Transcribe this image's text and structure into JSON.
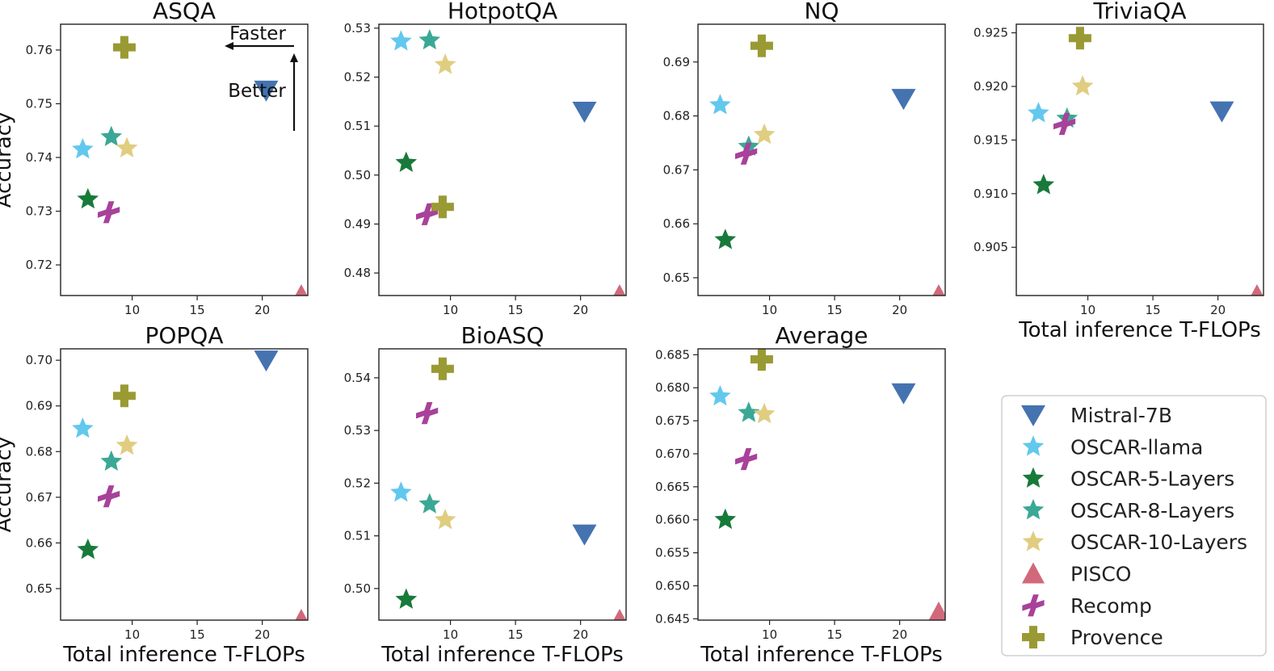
{
  "chart_data": {
    "type": "scatter",
    "xlabel": "Total inference T-FLOPs",
    "ylabel": "Accuracy",
    "annotations": {
      "horizontal": "Faster",
      "vertical": "Better"
    },
    "series": [
      {
        "name": "Mistral-7B",
        "color": "#4473b0",
        "marker": "triangle-down"
      },
      {
        "name": "OSCAR-llama",
        "color": "#62c8ee",
        "marker": "star"
      },
      {
        "name": "OSCAR-5-Layers",
        "color": "#187a3a",
        "marker": "star"
      },
      {
        "name": "OSCAR-8-Layers",
        "color": "#3ba895",
        "marker": "star"
      },
      {
        "name": "OSCAR-10-Layers",
        "color": "#e0cd80",
        "marker": "star"
      },
      {
        "name": "PISCO",
        "color": "#d1697a",
        "marker": "triangle-up"
      },
      {
        "name": "Recomp",
        "color": "#a8419a",
        "marker": "x"
      },
      {
        "name": "Provence",
        "color": "#9a9a34",
        "marker": "plus"
      }
    ],
    "x": {
      "Mistral-7B": 20.3,
      "OSCAR-llama": 6.2,
      "OSCAR-5-Layers": 6.6,
      "OSCAR-8-Layers": 8.4,
      "OSCAR-10-Layers": 9.6,
      "PISCO": 23.0,
      "Recomp": 8.2,
      "Provence": 9.4
    },
    "xlim": [
      4.5,
      23.5
    ],
    "xticks": [
      10,
      15,
      20
    ],
    "panels": [
      {
        "title": "ASQA",
        "ylim": [
          0.7143,
          0.7648
        ],
        "yticks": [
          0.72,
          0.73,
          0.74,
          0.75,
          0.76
        ],
        "ytick_labels": [
          "0.72",
          "0.73",
          "0.74",
          "0.75",
          "0.76"
        ],
        "values": {
          "Mistral-7B": 0.7525,
          "OSCAR-llama": 0.7415,
          "OSCAR-5-Layers": 0.7322,
          "OSCAR-8-Layers": 0.7438,
          "OSCAR-10-Layers": 0.7417,
          "PISCO": 0.7143,
          "Recomp": 0.7298,
          "Provence": 0.7605
        },
        "show_ylabel": true,
        "show_xlabel": false,
        "show_arrows": true
      },
      {
        "title": "HotpotQA",
        "ylim": [
          0.4754,
          0.5308
        ],
        "yticks": [
          0.48,
          0.49,
          0.5,
          0.51,
          0.52,
          0.53
        ],
        "ytick_labels": [
          "0.48",
          "0.49",
          "0.50",
          "0.51",
          "0.52",
          "0.53"
        ],
        "values": {
          "Mistral-7B": 0.513,
          "OSCAR-llama": 0.5273,
          "OSCAR-5-Layers": 0.5025,
          "OSCAR-8-Layers": 0.5275,
          "OSCAR-10-Layers": 0.5225,
          "PISCO": 0.4754,
          "Recomp": 0.492,
          "Provence": 0.4935
        },
        "show_ylabel": false,
        "show_xlabel": false,
        "show_arrows": false
      },
      {
        "title": "NQ",
        "ylim": [
          0.6467,
          0.697
        ],
        "yticks": [
          0.65,
          0.66,
          0.67,
          0.68,
          0.69
        ],
        "ytick_labels": [
          "0.65",
          "0.66",
          "0.67",
          "0.68",
          "0.69"
        ],
        "values": {
          "Mistral-7B": 0.6832,
          "OSCAR-llama": 0.682,
          "OSCAR-5-Layers": 0.657,
          "OSCAR-8-Layers": 0.6743,
          "OSCAR-10-Layers": 0.6765,
          "PISCO": 0.6467,
          "Recomp": 0.673,
          "Provence": 0.693
        },
        "show_ylabel": false,
        "show_xlabel": false,
        "show_arrows": false
      },
      {
        "title": "TriviaQA",
        "ylim": [
          0.9005,
          0.9258
        ],
        "yticks": [
          0.905,
          0.91,
          0.915,
          0.92,
          0.925
        ],
        "ytick_labels": [
          "0.905",
          "0.910",
          "0.915",
          "0.920",
          "0.925"
        ],
        "values": {
          "Mistral-7B": 0.9177,
          "OSCAR-llama": 0.9175,
          "OSCAR-5-Layers": 0.9108,
          "OSCAR-8-Layers": 0.917,
          "OSCAR-10-Layers": 0.92,
          "PISCO": 0.9005,
          "Recomp": 0.9165,
          "Provence": 0.9245
        },
        "show_ylabel": false,
        "show_xlabel": true,
        "show_arrows": false
      },
      {
        "title": "POPQA",
        "ylim": [
          0.6431,
          0.7025
        ],
        "yticks": [
          0.65,
          0.66,
          0.67,
          0.68,
          0.69,
          0.7
        ],
        "ytick_labels": [
          "0.65",
          "0.66",
          "0.67",
          "0.68",
          "0.69",
          "0.70"
        ],
        "values": {
          "Mistral-7B": 0.7,
          "OSCAR-llama": 0.685,
          "OSCAR-5-Layers": 0.6585,
          "OSCAR-8-Layers": 0.6778,
          "OSCAR-10-Layers": 0.6813,
          "PISCO": 0.6431,
          "Recomp": 0.6702,
          "Provence": 0.6922
        },
        "show_ylabel": true,
        "show_xlabel": true,
        "show_arrows": false
      },
      {
        "title": "BioASQ",
        "ylim": [
          0.494,
          0.5455
        ],
        "yticks": [
          0.5,
          0.51,
          0.52,
          0.53,
          0.54
        ],
        "ytick_labels": [
          "0.50",
          "0.51",
          "0.52",
          "0.53",
          "0.54"
        ],
        "values": {
          "Mistral-7B": 0.5103,
          "OSCAR-llama": 0.5182,
          "OSCAR-5-Layers": 0.4979,
          "OSCAR-8-Layers": 0.516,
          "OSCAR-10-Layers": 0.513,
          "PISCO": 0.494,
          "Recomp": 0.5333,
          "Provence": 0.5417
        },
        "show_ylabel": false,
        "show_xlabel": true,
        "show_arrows": false
      },
      {
        "title": "Average",
        "ylim": [
          0.6448,
          0.6859
        ],
        "yticks": [
          0.645,
          0.65,
          0.655,
          0.66,
          0.665,
          0.67,
          0.675,
          0.68,
          0.685
        ],
        "ytick_labels": [
          "0.645",
          "0.650",
          "0.655",
          "0.660",
          "0.665",
          "0.670",
          "0.675",
          "0.680",
          "0.685"
        ],
        "values": {
          "Mistral-7B": 0.6792,
          "OSCAR-llama": 0.6787,
          "OSCAR-5-Layers": 0.66,
          "OSCAR-8-Layers": 0.6762,
          "OSCAR-10-Layers": 0.676,
          "PISCO": 0.6459,
          "Recomp": 0.6692,
          "Provence": 0.6843
        },
        "show_ylabel": false,
        "show_xlabel": true,
        "show_arrows": false
      }
    ],
    "legend": {
      "position": "lower-right"
    }
  }
}
